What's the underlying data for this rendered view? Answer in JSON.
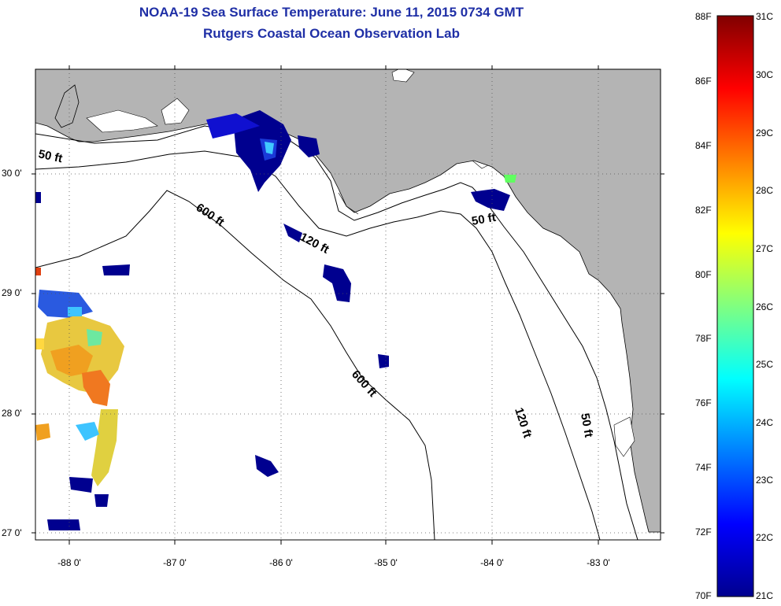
{
  "title": {
    "line1": "NOAA-19 Sea Surface Temperature:  June 11, 2015 0734 GMT",
    "line2": "Rutgers Coastal Ocean Observation Lab"
  },
  "map": {
    "lat_ticks": [
      "30 0'",
      "29 0'",
      "28 0'",
      "27 0'"
    ],
    "lon_ticks": [
      "-88 0'",
      "-87 0'",
      "-86 0'",
      "-85 0'",
      "-84 0'",
      "-83 0'"
    ],
    "contour_labels": {
      "c50_west": "50 ft",
      "c600_a": "600 ft",
      "c120_a": "120 ft",
      "c50_east": "50 ft",
      "c600_b": "600 ft",
      "c120_b": "120 ft",
      "c50_south": "50 ft"
    },
    "colors": {
      "land": "#b4b4b4",
      "water": "#ffffff",
      "contour": "#000000"
    }
  },
  "colorbar": {
    "fahrenheit": [
      "88F",
      "86F",
      "84F",
      "82F",
      "80F",
      "78F",
      "76F",
      "74F",
      "72F",
      "70F"
    ],
    "celsius": [
      "31C",
      "30C",
      "29C",
      "28C",
      "27C",
      "26C",
      "25C",
      "24C",
      "23C",
      "22C",
      "21C"
    ],
    "colors": [
      "#00008f",
      "#0000ff",
      "#0080ff",
      "#00ffff",
      "#80ff80",
      "#ffff00",
      "#ff8000",
      "#ff0000",
      "#800000"
    ]
  }
}
